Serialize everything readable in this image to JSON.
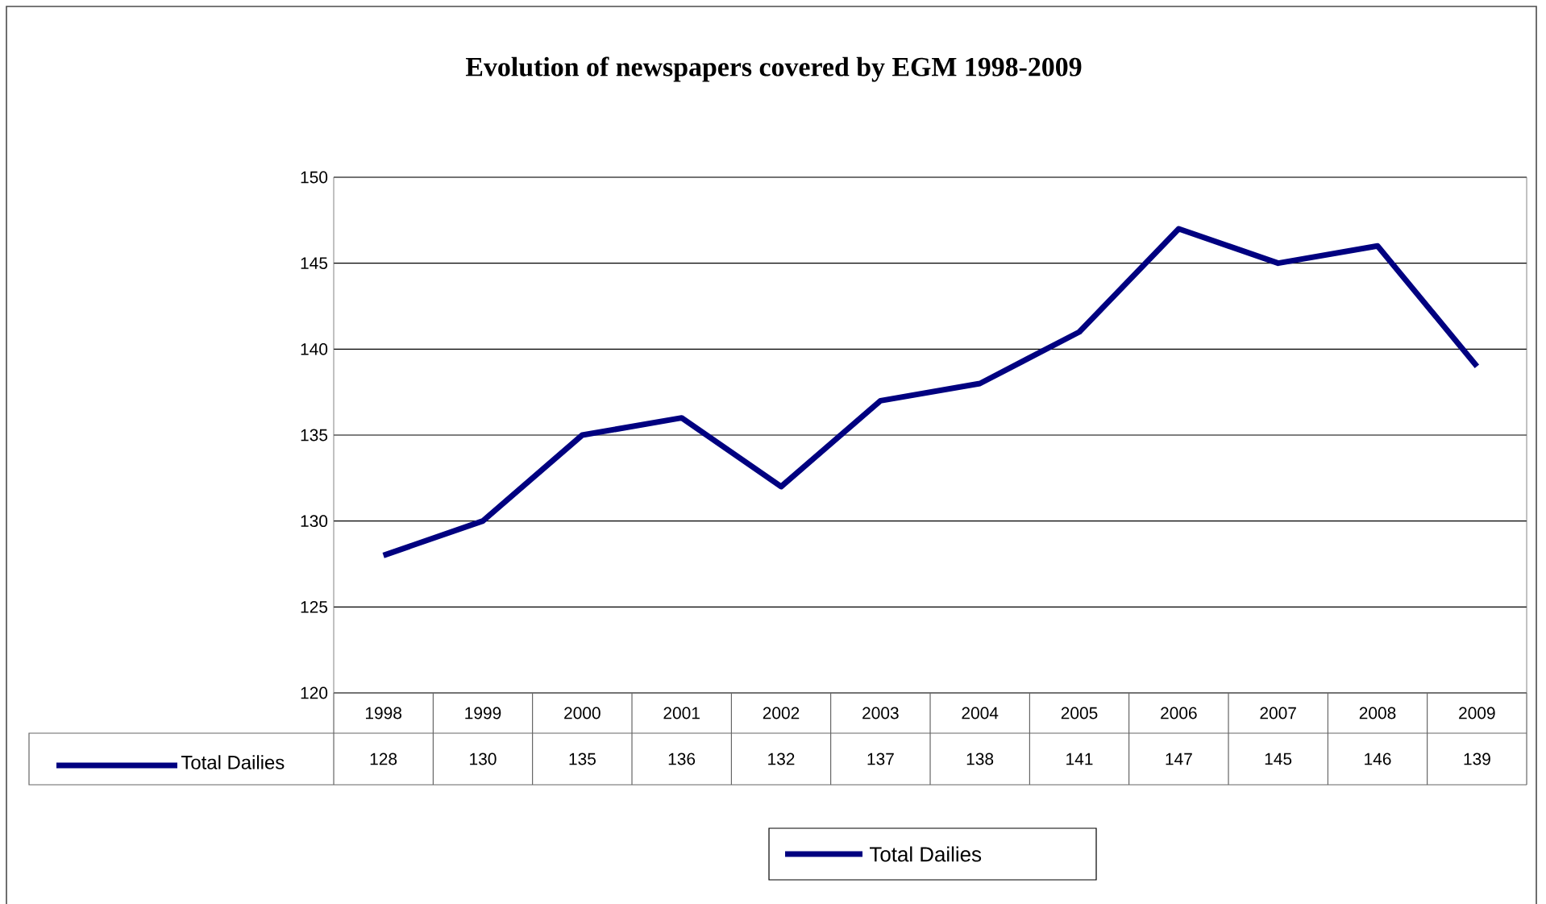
{
  "chart_data": {
    "type": "line",
    "title": "Evolution of newspapers covered by EGM 1998-2009",
    "categories": [
      "1998",
      "1999",
      "2000",
      "2001",
      "2002",
      "2003",
      "2004",
      "2005",
      "2006",
      "2007",
      "2008",
      "2009"
    ],
    "series": [
      {
        "name": "Total Dailies",
        "color": "#000080",
        "values": [
          128,
          130,
          135,
          136,
          132,
          137,
          138,
          141,
          147,
          145,
          146,
          139
        ]
      }
    ],
    "ylim": [
      120,
      150
    ],
    "yticks": [
      120,
      125,
      130,
      135,
      140,
      145,
      150
    ],
    "grid": "y",
    "legend": "bottom",
    "data_labels": true
  }
}
